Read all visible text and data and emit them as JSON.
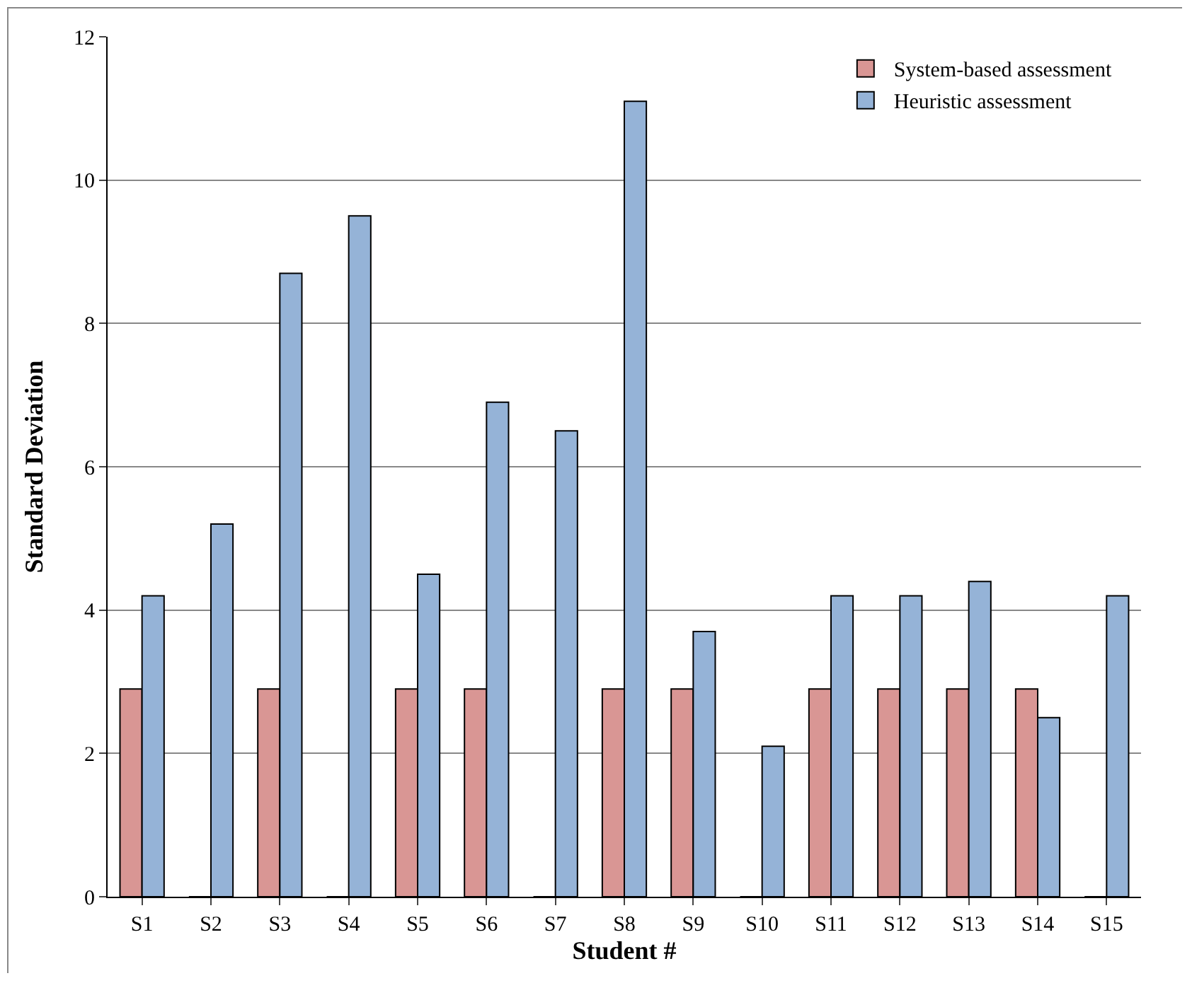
{
  "chart_data": {
    "type": "bar",
    "xlabel": "Student #",
    "ylabel": "Standard Deviation",
    "categories": [
      "S1",
      "S2",
      "S3",
      "S4",
      "S5",
      "S6",
      "S7",
      "S8",
      "S9",
      "S10",
      "S11",
      "S12",
      "S13",
      "S14",
      "S15"
    ],
    "series": [
      {
        "name": "System-based assessment",
        "color": "#d99694",
        "values": [
          2.9,
          0,
          2.9,
          0,
          2.9,
          2.9,
          0,
          2.9,
          2.9,
          0,
          2.9,
          2.9,
          2.9,
          2.9,
          0
        ]
      },
      {
        "name": "Heuristic assessment",
        "color": "#95b3d7",
        "values": [
          4.2,
          5.2,
          8.7,
          9.5,
          4.5,
          6.9,
          6.5,
          11.1,
          3.7,
          2.1,
          4.2,
          4.2,
          4.4,
          2.5,
          4.2
        ]
      }
    ],
    "ylim": [
      0,
      12
    ],
    "yticks": [
      0,
      2,
      4,
      6,
      8,
      10,
      12
    ],
    "grid": "y",
    "legend": "top right"
  }
}
